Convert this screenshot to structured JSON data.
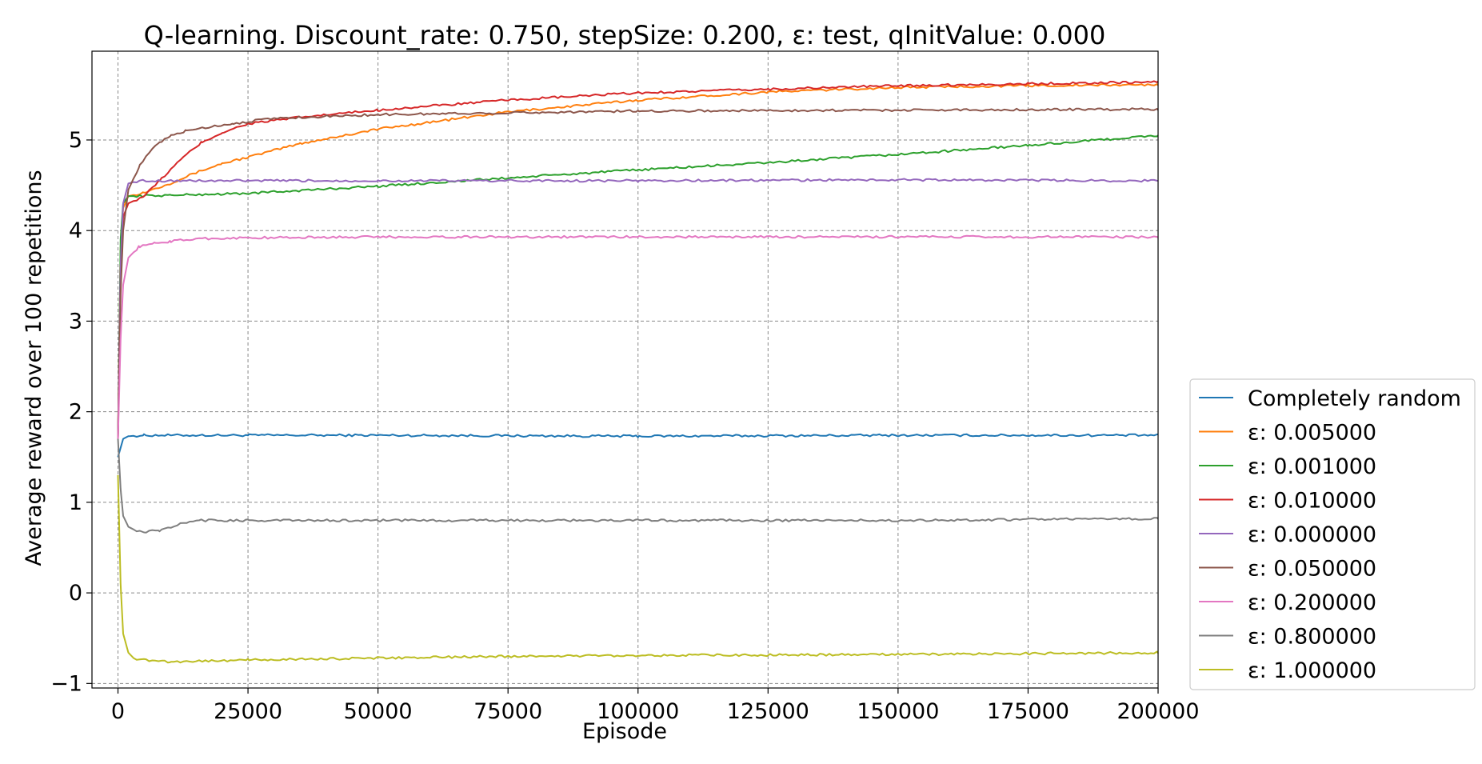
{
  "chart_data": {
    "type": "line",
    "title": "Q-learning. Discount_rate: 0.750, stepSize: 0.200, ε: test, qInitValue: 0.000",
    "xlabel": "Episode",
    "ylabel": "Average reward over 100 repetitions",
    "xlim": [
      -5000,
      200000
    ],
    "ylim": [
      -1.05,
      5.98
    ],
    "x_ticks": [
      0,
      25000,
      50000,
      75000,
      100000,
      125000,
      150000,
      175000,
      200000
    ],
    "x_tick_labels": [
      "0",
      "25000",
      "50000",
      "75000",
      "100000",
      "125000",
      "150000",
      "175000",
      "200000"
    ],
    "y_ticks": [
      -1,
      0,
      1,
      2,
      3,
      4,
      5
    ],
    "y_tick_labels": [
      "−1",
      "0",
      "1",
      "2",
      "3",
      "4",
      "5"
    ],
    "grid": true,
    "legend_position": "lower-right, outside plot area",
    "series": [
      {
        "name": "Completely random",
        "color": "#1f77b4",
        "points": [
          [
            0,
            1.5
          ],
          [
            1000,
            1.7
          ],
          [
            2000,
            1.73
          ],
          [
            5000,
            1.74
          ],
          [
            25000,
            1.74
          ],
          [
            50000,
            1.74
          ],
          [
            100000,
            1.73
          ],
          [
            150000,
            1.74
          ],
          [
            200000,
            1.74
          ]
        ]
      },
      {
        "name": "ε: 0.005000",
        "color": "#ff7f0e",
        "points": [
          [
            0,
            1.7
          ],
          [
            500,
            3.8
          ],
          [
            1000,
            4.25
          ],
          [
            2000,
            4.38
          ],
          [
            5000,
            4.42
          ],
          [
            10000,
            4.52
          ],
          [
            15000,
            4.64
          ],
          [
            20000,
            4.74
          ],
          [
            25000,
            4.81
          ],
          [
            35000,
            4.96
          ],
          [
            50000,
            5.12
          ],
          [
            75000,
            5.31
          ],
          [
            100000,
            5.44
          ],
          [
            125000,
            5.53
          ],
          [
            150000,
            5.58
          ],
          [
            175000,
            5.6
          ],
          [
            200000,
            5.61
          ]
        ]
      },
      {
        "name": "ε: 0.001000",
        "color": "#2ca02c",
        "points": [
          [
            0,
            1.7
          ],
          [
            500,
            3.9
          ],
          [
            1000,
            4.3
          ],
          [
            2000,
            4.38
          ],
          [
            10000,
            4.39
          ],
          [
            25000,
            4.41
          ],
          [
            50000,
            4.49
          ],
          [
            75000,
            4.58
          ],
          [
            100000,
            4.67
          ],
          [
            125000,
            4.75
          ],
          [
            150000,
            4.84
          ],
          [
            175000,
            4.94
          ],
          [
            200000,
            5.05
          ]
        ]
      },
      {
        "name": "ε: 0.010000",
        "color": "#d62728",
        "points": [
          [
            0,
            1.7
          ],
          [
            500,
            3.6
          ],
          [
            1000,
            4.15
          ],
          [
            2000,
            4.3
          ],
          [
            5000,
            4.38
          ],
          [
            8000,
            4.55
          ],
          [
            12000,
            4.78
          ],
          [
            16000,
            4.97
          ],
          [
            20000,
            5.08
          ],
          [
            25000,
            5.18
          ],
          [
            35000,
            5.25
          ],
          [
            50000,
            5.33
          ],
          [
            75000,
            5.44
          ],
          [
            100000,
            5.52
          ],
          [
            125000,
            5.56
          ],
          [
            150000,
            5.6
          ],
          [
            175000,
            5.62
          ],
          [
            200000,
            5.64
          ]
        ]
      },
      {
        "name": "ε: 0.000000",
        "color": "#9467bd",
        "points": [
          [
            0,
            1.7
          ],
          [
            500,
            3.6
          ],
          [
            1000,
            4.3
          ],
          [
            2000,
            4.52
          ],
          [
            4000,
            4.55
          ],
          [
            25000,
            4.55
          ],
          [
            50000,
            4.55
          ],
          [
            100000,
            4.55
          ],
          [
            150000,
            4.56
          ],
          [
            200000,
            4.55
          ]
        ]
      },
      {
        "name": "ε: 0.050000",
        "color": "#8c564b",
        "points": [
          [
            0,
            1.7
          ],
          [
            500,
            3.3
          ],
          [
            1000,
            4.0
          ],
          [
            2000,
            4.45
          ],
          [
            4000,
            4.7
          ],
          [
            6000,
            4.86
          ],
          [
            8000,
            4.97
          ],
          [
            10000,
            5.04
          ],
          [
            13000,
            5.1
          ],
          [
            17000,
            5.14
          ],
          [
            22000,
            5.18
          ],
          [
            30000,
            5.24
          ],
          [
            50000,
            5.28
          ],
          [
            75000,
            5.3
          ],
          [
            100000,
            5.32
          ],
          [
            150000,
            5.33
          ],
          [
            200000,
            5.34
          ]
        ]
      },
      {
        "name": "ε: 0.200000",
        "color": "#e377c2",
        "points": [
          [
            0,
            1.7
          ],
          [
            500,
            2.8
          ],
          [
            1000,
            3.4
          ],
          [
            2000,
            3.7
          ],
          [
            4000,
            3.82
          ],
          [
            7000,
            3.86
          ],
          [
            10000,
            3.88
          ],
          [
            15000,
            3.91
          ],
          [
            25000,
            3.92
          ],
          [
            50000,
            3.93
          ],
          [
            100000,
            3.93
          ],
          [
            150000,
            3.93
          ],
          [
            200000,
            3.93
          ]
        ]
      },
      {
        "name": "ε: 0.800000",
        "color": "#7f7f7f",
        "points": [
          [
            0,
            1.7
          ],
          [
            500,
            1.15
          ],
          [
            1000,
            0.85
          ],
          [
            2000,
            0.73
          ],
          [
            3000,
            0.7
          ],
          [
            5000,
            0.67
          ],
          [
            8000,
            0.69
          ],
          [
            12000,
            0.76
          ],
          [
            16000,
            0.8
          ],
          [
            25000,
            0.8
          ],
          [
            50000,
            0.8
          ],
          [
            100000,
            0.8
          ],
          [
            150000,
            0.8
          ],
          [
            200000,
            0.82
          ]
        ]
      },
      {
        "name": "ε: 1.000000",
        "color": "#bcbd22",
        "points": [
          [
            0,
            1.3
          ],
          [
            500,
            0.1
          ],
          [
            1000,
            -0.45
          ],
          [
            2000,
            -0.66
          ],
          [
            3000,
            -0.72
          ],
          [
            5000,
            -0.74
          ],
          [
            10000,
            -0.76
          ],
          [
            25000,
            -0.74
          ],
          [
            50000,
            -0.72
          ],
          [
            75000,
            -0.7
          ],
          [
            100000,
            -0.69
          ],
          [
            150000,
            -0.68
          ],
          [
            200000,
            -0.66
          ]
        ]
      }
    ]
  }
}
